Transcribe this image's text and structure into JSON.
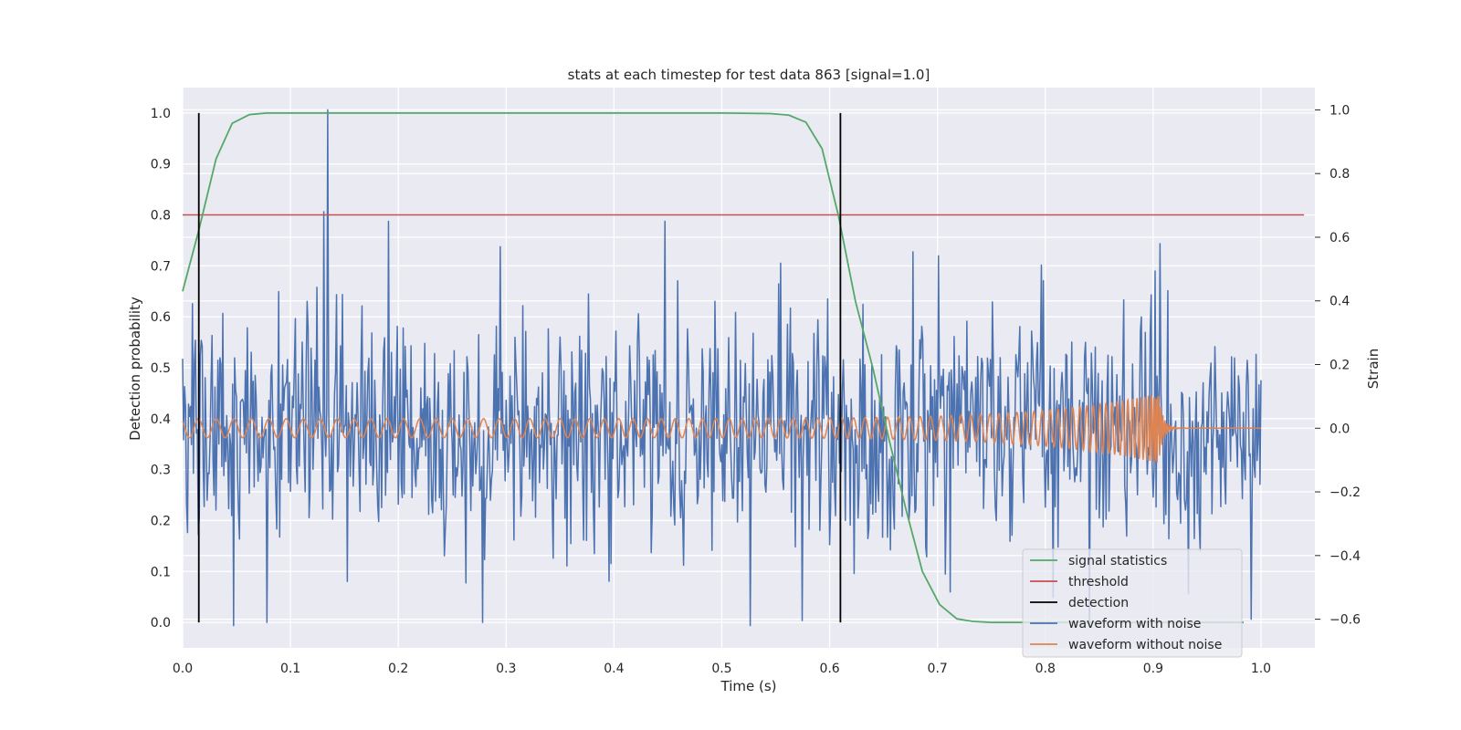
{
  "chart_data": {
    "type": "line",
    "title": "stats at each timestep for test data 863 [signal=1.0]",
    "xlabel": "Time (s)",
    "ylabel_left": "Detection probability",
    "ylabel_right": "Strain",
    "xlim": [
      0.0,
      1.05
    ],
    "ylim_left": [
      -0.05,
      1.05
    ],
    "ylim_right": [
      -0.69,
      1.07
    ],
    "grid": true,
    "legend_position": "lower-right",
    "x_ticks": [
      "0.0",
      "0.1",
      "0.2",
      "0.3",
      "0.4",
      "0.5",
      "0.6",
      "0.7",
      "0.8",
      "0.9",
      "1.0"
    ],
    "y_ticks_left": [
      "0.0",
      "0.1",
      "0.2",
      "0.3",
      "0.4",
      "0.5",
      "0.6",
      "0.7",
      "0.8",
      "0.9",
      "1.0"
    ],
    "y_ticks_right": [
      "−0.6",
      "−0.4",
      "−0.2",
      "0.0",
      "0.2",
      "0.4",
      "0.6",
      "0.8",
      "1.0"
    ],
    "y_tick_values_right": [
      -0.6,
      -0.4,
      -0.2,
      0.0,
      0.2,
      0.4,
      0.6,
      0.8,
      1.0
    ],
    "signal_statistics": {
      "name": "signal statistics",
      "color": "#55a868",
      "x": [
        0.0,
        0.015,
        0.031,
        0.046,
        0.062,
        0.078,
        0.1,
        0.2,
        0.3,
        0.4,
        0.5,
        0.545,
        0.562,
        0.578,
        0.593,
        0.608,
        0.624,
        0.64,
        0.655,
        0.671,
        0.686,
        0.702,
        0.718,
        0.733,
        0.75,
        0.8,
        0.9,
        0.984
      ],
      "y": [
        0.65,
        0.77,
        0.91,
        0.98,
        0.997,
        1.0,
        1.0,
        1.0,
        1.0,
        1.0,
        1.0,
        0.999,
        0.996,
        0.982,
        0.93,
        0.8,
        0.63,
        0.5,
        0.36,
        0.22,
        0.1,
        0.035,
        0.007,
        0.002,
        0.0,
        0.0,
        0.0,
        0.0
      ]
    },
    "threshold": {
      "name": "threshold",
      "color": "#c44e52",
      "value": 0.8,
      "x_range": [
        0.0,
        1.04
      ]
    },
    "detections": {
      "name": "detection",
      "color": "#000000",
      "x": [
        0.015,
        0.61
      ],
      "y_range": [
        0.0,
        1.0
      ]
    },
    "waveform_with_noise": {
      "name": "waveform with noise",
      "color": "#4c72b0",
      "x_range": [
        0.0,
        1.0
      ],
      "std_strain": 0.18,
      "peaks": [
        {
          "x": 0.135,
          "y": 1.0
        },
        {
          "x": 0.131,
          "y": 0.68
        },
        {
          "x": 0.191,
          "y": 0.65
        },
        {
          "x": 0.447,
          "y": 0.65
        },
        {
          "x": 0.295,
          "y": 0.57
        },
        {
          "x": 0.906,
          "y": 0.58
        },
        {
          "x": 0.078,
          "y": -0.61
        },
        {
          "x": 0.278,
          "y": -0.61
        },
        {
          "x": 0.047,
          "y": -0.62
        },
        {
          "x": 0.933,
          "y": -0.52
        },
        {
          "x": 0.991,
          "y": -0.6
        }
      ]
    },
    "waveform_without_noise": {
      "name": "waveform without noise",
      "color": "#dd8452",
      "x_range": [
        0.0,
        1.0
      ],
      "start_frequency_hz": 60,
      "merger_time": 0.905,
      "amplitude_start": 0.03,
      "amplitude_merger": 0.11
    },
    "legend": [
      "signal statistics",
      "threshold",
      "detection",
      "waveform with noise",
      "waveform without noise"
    ]
  }
}
